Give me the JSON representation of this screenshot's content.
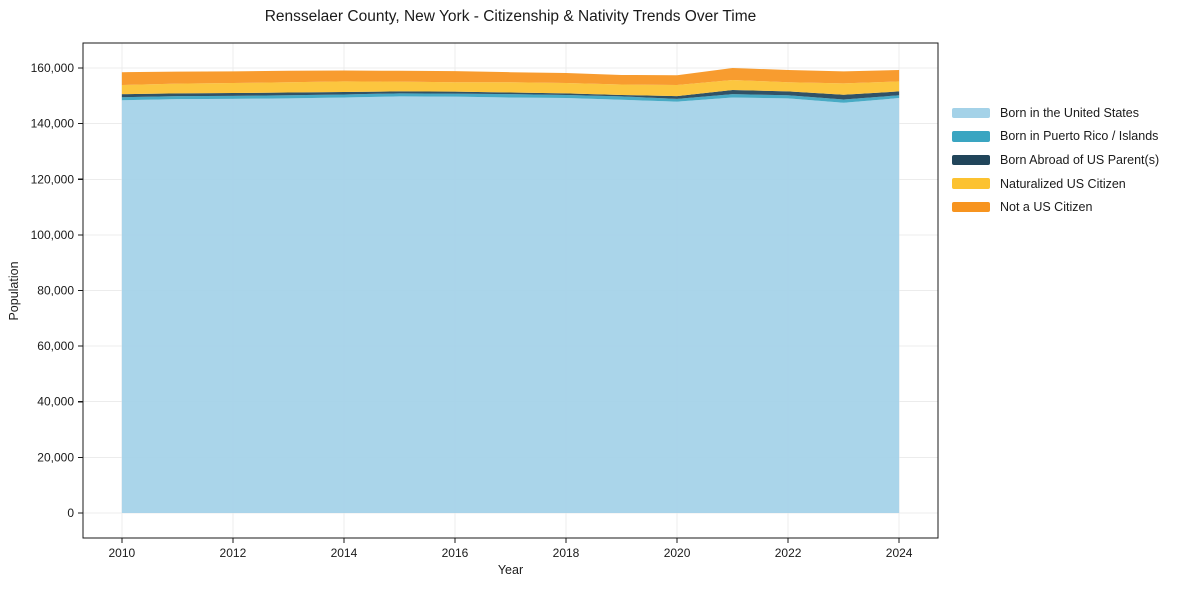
{
  "title": "Rensselaer County, New York - Citizenship & Nativity Trends Over Time",
  "axes": {
    "xlabel": "Year",
    "ylabel": "Population",
    "x_tick_values": [
      2010,
      2012,
      2014,
      2016,
      2018,
      2020,
      2022,
      2024
    ],
    "x_tick_labels": [
      "2010",
      "2012",
      "2014",
      "2016",
      "2018",
      "2020",
      "2022",
      "2024"
    ],
    "y_tick_values": [
      0,
      20000,
      40000,
      60000,
      80000,
      100000,
      120000,
      140000,
      160000
    ],
    "y_tick_labels": [
      "0",
      "20,000",
      "40,000",
      "60,000",
      "80,000",
      "100,000",
      "120,000",
      "140,000",
      "160,000"
    ]
  },
  "chart_data": {
    "type": "area",
    "stacked": true,
    "title": "Rensselaer County, New York - Citizenship & Nativity Trends Over Time",
    "xlabel": "Year",
    "ylabel": "Population",
    "grid": true,
    "grid_color": "#ececec",
    "background": "#ffffff",
    "legend_position": "right-outside",
    "xlim": [
      2009.3,
      2024.7
    ],
    "ylim": [
      -9000,
      169000
    ],
    "x": [
      2010,
      2011,
      2012,
      2013,
      2014,
      2015,
      2016,
      2017,
      2018,
      2019,
      2020,
      2021,
      2022,
      2023,
      2024
    ],
    "series": [
      {
        "name": "Born in the United States",
        "color": "#a4d2e8",
        "values": [
          148400,
          148800,
          148900,
          149100,
          149400,
          149800,
          149700,
          149400,
          149200,
          148600,
          147900,
          149400,
          149100,
          147500,
          149200
        ]
      },
      {
        "name": "Born in Puerto Rico / Islands",
        "color": "#3aa5c1",
        "values": [
          1100,
          1100,
          1100,
          1100,
          1100,
          1100,
          1100,
          1200,
          1100,
          1200,
          1000,
          1200,
          1100,
          1200,
          1000
        ]
      },
      {
        "name": "Born Abroad of US Parent(s)",
        "color": "#21455a",
        "values": [
          1100,
          1000,
          1000,
          1000,
          900,
          700,
          700,
          600,
          600,
          500,
          1000,
          1500,
          1400,
          1700,
          1400
        ]
      },
      {
        "name": "Naturalized US Citizen",
        "color": "#fcc230",
        "values": [
          3300,
          3500,
          3600,
          3700,
          3800,
          3500,
          3400,
          3700,
          3700,
          3800,
          4000,
          3600,
          3300,
          4100,
          3600
        ]
      },
      {
        "name": "Not a US Citizen",
        "color": "#f7941f",
        "values": [
          4600,
          4300,
          4200,
          4100,
          3900,
          3900,
          4000,
          3600,
          3600,
          3400,
          3500,
          4300,
          4400,
          4300,
          4100
        ]
      }
    ]
  }
}
